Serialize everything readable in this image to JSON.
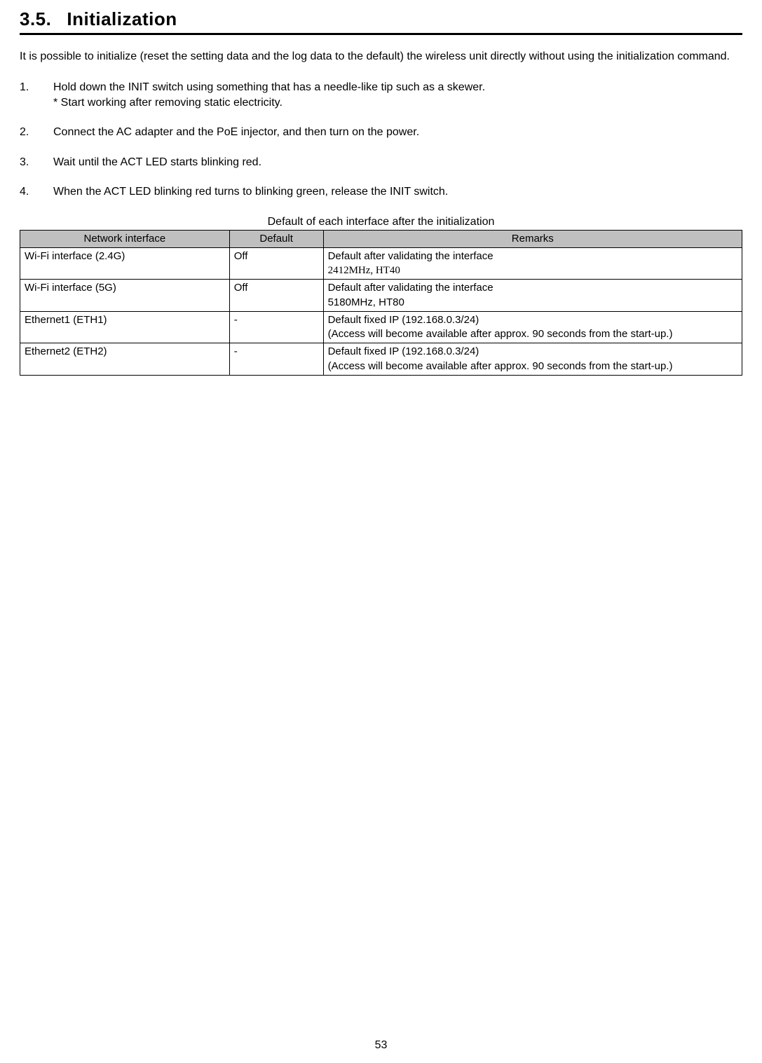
{
  "section": {
    "number": "3.5.",
    "title": "Initialization"
  },
  "intro": "It is possible to initialize (reset the setting data and the log data to the default) the wireless unit directly without using the initialization command.",
  "steps": [
    {
      "num": "1.",
      "text": "Hold down the INIT switch using something that has a needle-like tip such as a skewer.",
      "note": "* Start working after removing static electricity."
    },
    {
      "num": "2.",
      "text": "Connect the AC adapter and the PoE injector, and then turn on the power."
    },
    {
      "num": "3.",
      "text": "Wait until the ACT LED starts blinking red."
    },
    {
      "num": "4.",
      "text": "When the ACT LED blinking red turns to blinking green, release the INIT switch."
    }
  ],
  "table": {
    "caption": "Default of each interface after the initialization",
    "headers": {
      "col1": "Network interface",
      "col2": "Default",
      "col3": "Remarks"
    },
    "rows": [
      {
        "iface": "Wi-Fi interface (2.4G)",
        "def": "Off",
        "rem1": "Default after validating the interface",
        "rem2": "2412MHz, HT40"
      },
      {
        "iface": "Wi-Fi interface (5G)",
        "def": "Off",
        "rem1": "Default after validating the interface",
        "rem2": "5180MHz, HT80"
      },
      {
        "iface": "Ethernet1 (ETH1)",
        "def": "-",
        "rem1": "Default fixed IP (192.168.0.3/24)",
        "rem2": "(Access will become available after approx. 90 seconds from the start-up.)"
      },
      {
        "iface": "Ethernet2 (ETH2)",
        "def": "-",
        "rem1": "Default fixed IP (192.168.0.3/24)",
        "rem2": "(Access will become available after approx. 90 seconds from the start-up.)"
      }
    ]
  },
  "page_number": "53",
  "colors": {
    "text": "#000000",
    "background": "#ffffff",
    "table_header_bg": "#bfbfbf",
    "rule": "#000000"
  }
}
